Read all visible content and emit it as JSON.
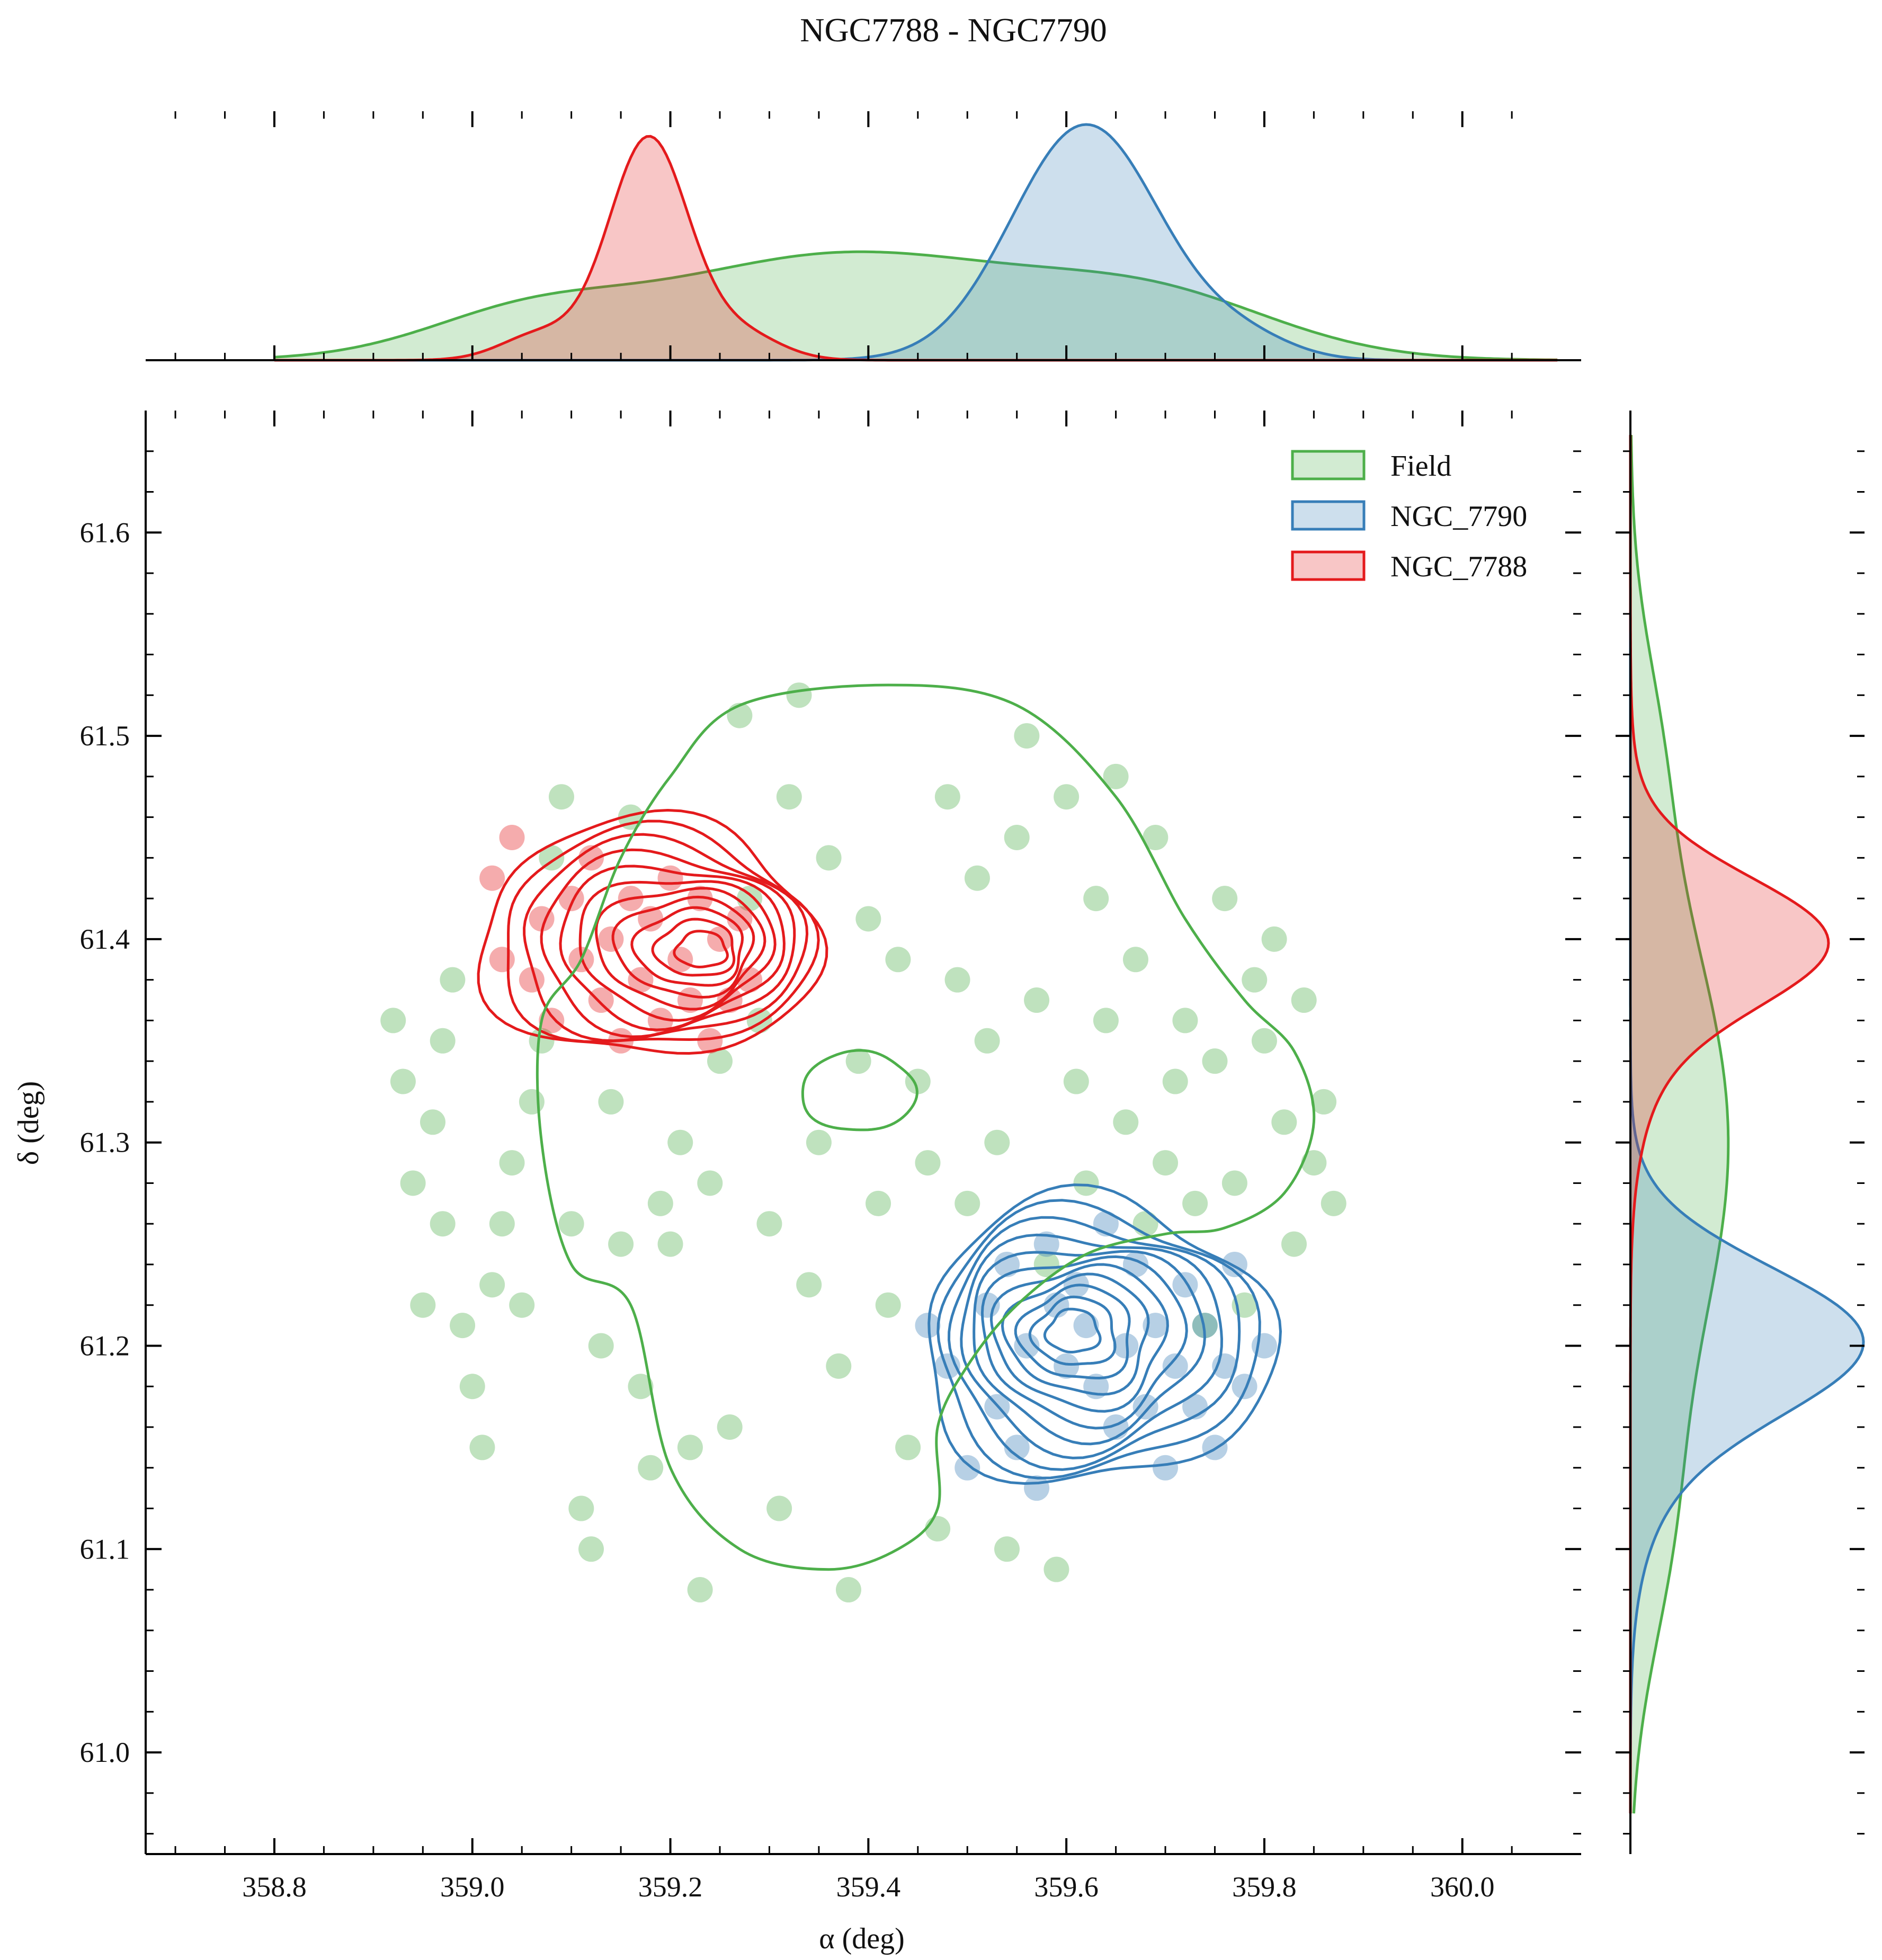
{
  "chart_data": {
    "type": "scatter",
    "title": "NGC7788 - NGC7790",
    "xlabel": "α (deg)",
    "ylabel": "δ (deg)",
    "xlim": [
      358.67,
      360.12
    ],
    "ylim": [
      60.95,
      61.66
    ],
    "x_ticks": [
      358.8,
      359.0,
      359.2,
      359.4,
      359.6,
      359.8,
      360.0
    ],
    "x_tick_labels": [
      "358.8",
      "359.0",
      "359.2",
      "359.4",
      "359.6",
      "359.8",
      "360.0"
    ],
    "y_ticks": [
      61.0,
      61.1,
      61.2,
      61.3,
      61.4,
      61.5,
      61.6
    ],
    "y_tick_labels": [
      "61.0",
      "61.1",
      "61.2",
      "61.3",
      "61.4",
      "61.5",
      "61.6"
    ],
    "grid": false,
    "legend_position": "top-right",
    "series": [
      {
        "name": "Field",
        "color": "#4daf4a",
        "points": [
          [
            358.92,
            61.36
          ],
          [
            358.93,
            61.33
          ],
          [
            358.94,
            61.28
          ],
          [
            358.95,
            61.22
          ],
          [
            358.96,
            61.31
          ],
          [
            358.97,
            61.26
          ],
          [
            358.97,
            61.35
          ],
          [
            358.98,
            61.38
          ],
          [
            358.99,
            61.21
          ],
          [
            359.0,
            61.18
          ],
          [
            359.01,
            61.15
          ],
          [
            359.02,
            61.23
          ],
          [
            359.03,
            61.26
          ],
          [
            359.04,
            61.29
          ],
          [
            359.05,
            61.22
          ],
          [
            359.06,
            61.32
          ],
          [
            359.07,
            61.35
          ],
          [
            359.08,
            61.44
          ],
          [
            359.09,
            61.47
          ],
          [
            359.1,
            61.26
          ],
          [
            359.11,
            61.12
          ],
          [
            359.12,
            61.1
          ],
          [
            359.13,
            61.2
          ],
          [
            359.14,
            61.32
          ],
          [
            359.15,
            61.25
          ],
          [
            359.16,
            61.46
          ],
          [
            359.17,
            61.18
          ],
          [
            359.18,
            61.14
          ],
          [
            359.19,
            61.27
          ],
          [
            359.2,
            61.25
          ],
          [
            359.21,
            61.3
          ],
          [
            359.22,
            61.15
          ],
          [
            359.23,
            61.08
          ],
          [
            359.24,
            61.28
          ],
          [
            359.25,
            61.34
          ],
          [
            359.26,
            61.16
          ],
          [
            359.27,
            61.51
          ],
          [
            359.28,
            61.42
          ],
          [
            359.29,
            61.36
          ],
          [
            359.3,
            61.26
          ],
          [
            359.31,
            61.12
          ],
          [
            359.32,
            61.47
          ],
          [
            359.33,
            61.52
          ],
          [
            359.34,
            61.23
          ],
          [
            359.35,
            61.3
          ],
          [
            359.36,
            61.44
          ],
          [
            359.37,
            61.19
          ],
          [
            359.38,
            61.08
          ],
          [
            359.39,
            61.34
          ],
          [
            359.4,
            61.41
          ],
          [
            359.41,
            61.27
          ],
          [
            359.42,
            61.22
          ],
          [
            359.43,
            61.39
          ],
          [
            359.44,
            61.15
          ],
          [
            359.45,
            61.33
          ],
          [
            359.46,
            61.29
          ],
          [
            359.47,
            61.11
          ],
          [
            359.48,
            61.47
          ],
          [
            359.49,
            61.38
          ],
          [
            359.5,
            61.27
          ],
          [
            359.51,
            61.43
          ],
          [
            359.52,
            61.35
          ],
          [
            359.53,
            61.3
          ],
          [
            359.54,
            61.1
          ],
          [
            359.55,
            61.45
          ],
          [
            359.56,
            61.5
          ],
          [
            359.57,
            61.37
          ],
          [
            359.58,
            61.24
          ],
          [
            359.59,
            61.09
          ],
          [
            359.6,
            61.47
          ],
          [
            359.61,
            61.33
          ],
          [
            359.62,
            61.28
          ],
          [
            359.63,
            61.42
          ],
          [
            359.64,
            61.36
          ],
          [
            359.65,
            61.48
          ],
          [
            359.66,
            61.31
          ],
          [
            359.67,
            61.39
          ],
          [
            359.68,
            61.26
          ],
          [
            359.69,
            61.45
          ],
          [
            359.7,
            61.29
          ],
          [
            359.71,
            61.33
          ],
          [
            359.72,
            61.36
          ],
          [
            359.73,
            61.27
          ],
          [
            359.74,
            61.21
          ],
          [
            359.75,
            61.34
          ],
          [
            359.76,
            61.42
          ],
          [
            359.77,
            61.28
          ],
          [
            359.78,
            61.22
          ],
          [
            359.79,
            61.38
          ],
          [
            359.8,
            61.35
          ],
          [
            359.81,
            61.4
          ],
          [
            359.82,
            61.31
          ],
          [
            359.83,
            61.25
          ],
          [
            359.84,
            61.37
          ],
          [
            359.85,
            61.29
          ],
          [
            359.86,
            61.32
          ],
          [
            359.87,
            61.27
          ]
        ]
      },
      {
        "name": "NGC_7790",
        "color": "#377eb8",
        "center": [
          359.615,
          61.207
        ],
        "points": [
          [
            359.46,
            61.21
          ],
          [
            359.48,
            61.19
          ],
          [
            359.5,
            61.14
          ],
          [
            359.52,
            61.22
          ],
          [
            359.53,
            61.17
          ],
          [
            359.54,
            61.24
          ],
          [
            359.55,
            61.15
          ],
          [
            359.56,
            61.2
          ],
          [
            359.57,
            61.13
          ],
          [
            359.58,
            61.25
          ],
          [
            359.59,
            61.22
          ],
          [
            359.6,
            61.19
          ],
          [
            359.61,
            61.23
          ],
          [
            359.62,
            61.21
          ],
          [
            359.63,
            61.18
          ],
          [
            359.64,
            61.26
          ],
          [
            359.65,
            61.16
          ],
          [
            359.66,
            61.2
          ],
          [
            359.67,
            61.24
          ],
          [
            359.68,
            61.17
          ],
          [
            359.69,
            61.21
          ],
          [
            359.7,
            61.14
          ],
          [
            359.71,
            61.19
          ],
          [
            359.72,
            61.23
          ],
          [
            359.73,
            61.17
          ],
          [
            359.74,
            61.21
          ],
          [
            359.75,
            61.15
          ],
          [
            359.76,
            61.19
          ],
          [
            359.77,
            61.24
          ],
          [
            359.78,
            61.18
          ],
          [
            359.8,
            61.2
          ]
        ]
      },
      {
        "name": "NGC_7788",
        "color": "#e41a1c",
        "center": [
          359.178,
          61.4
        ],
        "points": [
          [
            359.02,
            61.43
          ],
          [
            359.03,
            61.39
          ],
          [
            359.04,
            61.45
          ],
          [
            359.06,
            61.38
          ],
          [
            359.07,
            61.41
          ],
          [
            359.08,
            61.36
          ],
          [
            359.1,
            61.42
          ],
          [
            359.11,
            61.39
          ],
          [
            359.12,
            61.44
          ],
          [
            359.13,
            61.37
          ],
          [
            359.14,
            61.4
          ],
          [
            359.15,
            61.35
          ],
          [
            359.16,
            61.42
          ],
          [
            359.17,
            61.38
          ],
          [
            359.18,
            61.41
          ],
          [
            359.19,
            61.36
          ],
          [
            359.2,
            61.43
          ],
          [
            359.21,
            61.39
          ],
          [
            359.22,
            61.37
          ],
          [
            359.23,
            61.42
          ],
          [
            359.24,
            61.35
          ],
          [
            359.25,
            61.4
          ],
          [
            359.26,
            61.37
          ],
          [
            359.27,
            61.41
          ],
          [
            359.28,
            61.38
          ]
        ]
      }
    ],
    "marginal_x": {
      "Field": {
        "center": 359.38,
        "width": 0.2,
        "peak": 0.46
      },
      "NGC_7790": {
        "center": 359.62,
        "width": 0.075,
        "peak": 1.0
      },
      "NGC_7788": {
        "center": 359.178,
        "width": 0.04,
        "peak": 0.95
      }
    },
    "marginal_y": {
      "Field": {
        "center": 61.3,
        "width": 0.11,
        "peak": 0.42
      },
      "NGC_7790": {
        "center": 61.205,
        "width": 0.035,
        "peak": 1.0
      },
      "NGC_7788": {
        "center": 61.4,
        "width": 0.03,
        "peak": 0.85
      }
    }
  }
}
